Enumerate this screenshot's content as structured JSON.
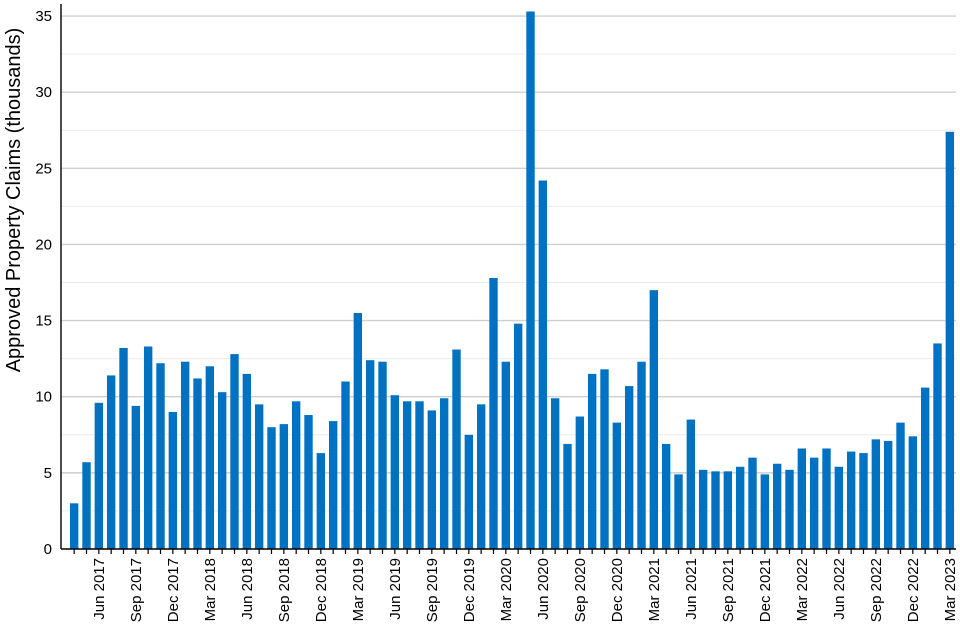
{
  "chart_data": {
    "type": "bar",
    "title": "",
    "xlabel": "",
    "ylabel": "Approved Property Claims (thousands)",
    "ylim": [
      0,
      36
    ],
    "yticks": [
      0,
      5,
      10,
      15,
      20,
      25,
      30,
      35
    ],
    "grid": "horizontal",
    "bar_color": "#0072c1",
    "x_tick_labels": [
      "Jun 2017",
      "Sep 2017",
      "Dec 2017",
      "Mar 2018",
      "Jun 2018",
      "Sep 2018",
      "Dec 2018",
      "Mar 2019",
      "Jun 2019",
      "Sep 2019",
      "Dec 2019",
      "Mar 2020",
      "Jun 2020",
      "Sep 2020",
      "Dec 2020",
      "Mar 2021",
      "Jun 2021",
      "Sep 2021",
      "Dec 2021",
      "Mar 2022",
      "Jun 2022",
      "Sep 2022",
      "Dec 2022",
      "Mar 2023"
    ],
    "categories": [
      "Apr 2017",
      "May 2017",
      "Jun 2017",
      "Jul 2017",
      "Aug 2017",
      "Sep 2017",
      "Oct 2017",
      "Nov 2017",
      "Dec 2017",
      "Jan 2018",
      "Feb 2018",
      "Mar 2018",
      "Apr 2018",
      "May 2018",
      "Jun 2018",
      "Jul 2018",
      "Aug 2018",
      "Sep 2018",
      "Oct 2018",
      "Nov 2018",
      "Dec 2018",
      "Jan 2019",
      "Feb 2019",
      "Mar 2019",
      "Apr 2019",
      "May 2019",
      "Jun 2019",
      "Jul 2019",
      "Aug 2019",
      "Sep 2019",
      "Oct 2019",
      "Nov 2019",
      "Dec 2019",
      "Jan 2020",
      "Feb 2020",
      "Mar 2020",
      "Apr 2020",
      "May 2020",
      "Jun 2020",
      "Jul 2020",
      "Aug 2020",
      "Sep 2020",
      "Oct 2020",
      "Nov 2020",
      "Dec 2020",
      "Jan 2021",
      "Feb 2021",
      "Mar 2021",
      "Apr 2021",
      "May 2021",
      "Jun 2021",
      "Jul 2021",
      "Aug 2021",
      "Sep 2021",
      "Oct 2021",
      "Nov 2021",
      "Dec 2021",
      "Jan 2022",
      "Feb 2022",
      "Mar 2022",
      "Apr 2022",
      "May 2022",
      "Jun 2022",
      "Jul 2022",
      "Aug 2022",
      "Sep 2022",
      "Oct 2022",
      "Nov 2022",
      "Dec 2022",
      "Jan 2023",
      "Feb 2023",
      "Mar 2023"
    ],
    "values": [
      3.0,
      5.7,
      9.6,
      11.4,
      13.2,
      9.4,
      13.3,
      12.2,
      9.0,
      12.3,
      11.2,
      12.0,
      10.3,
      12.8,
      11.5,
      9.5,
      8.0,
      8.2,
      9.7,
      8.8,
      6.3,
      8.4,
      11.0,
      15.5,
      12.4,
      12.3,
      10.1,
      9.7,
      9.7,
      9.1,
      9.9,
      13.1,
      7.5,
      9.5,
      17.8,
      12.3,
      14.8,
      35.3,
      24.2,
      9.9,
      6.9,
      8.7,
      11.5,
      11.8,
      8.3,
      10.7,
      12.3,
      17.0,
      6.9,
      4.9,
      8.5,
      5.2,
      5.1,
      5.1,
      5.4,
      6.0,
      4.9,
      5.6,
      5.2,
      6.6,
      6.0,
      6.6,
      5.4,
      6.4,
      6.3,
      7.2,
      7.1,
      8.3,
      7.4,
      10.6,
      13.5,
      27.4
    ]
  }
}
